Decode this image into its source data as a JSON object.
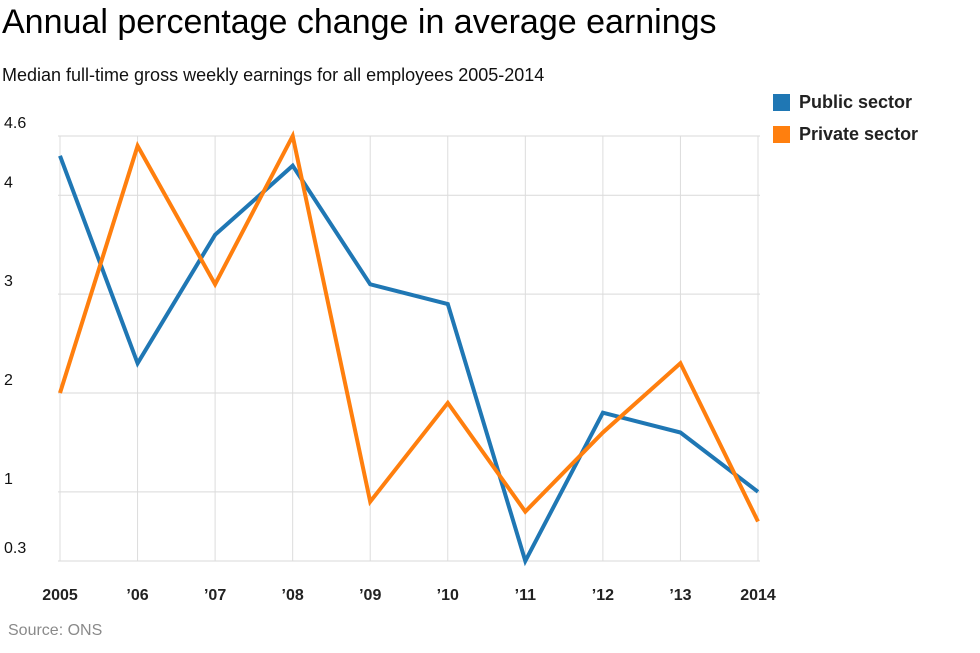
{
  "header": {
    "title": "Annual percentage change in average earnings",
    "subtitle": "Median full-time gross weekly earnings for all employees 2005-2014"
  },
  "footer": {
    "source": "Source: ONS"
  },
  "chart_data": {
    "type": "line",
    "title": "Annual percentage change in average earnings",
    "subtitle": "Median full-time gross weekly earnings for all employees 2005-2014",
    "categories": [
      "2005",
      "’06",
      "’07",
      "’08",
      "’09",
      "’10",
      "’11",
      "’12",
      "’13",
      "2014"
    ],
    "y_ticks": [
      "4.6",
      "4",
      "3",
      "2",
      "1",
      "0.3"
    ],
    "ylim": [
      0.3,
      4.6
    ],
    "grid": true,
    "legend_position": "top-right",
    "series": [
      {
        "name": "Public sector",
        "color": "#1f77b4",
        "values": [
          4.4,
          2.3,
          3.6,
          4.3,
          3.1,
          2.9,
          0.3,
          1.8,
          1.6,
          1.0
        ]
      },
      {
        "name": "Private sector",
        "color": "#ff7f0e",
        "values": [
          2.0,
          4.5,
          3.1,
          4.6,
          0.9,
          1.9,
          0.8,
          1.6,
          2.3,
          0.7
        ]
      }
    ]
  }
}
